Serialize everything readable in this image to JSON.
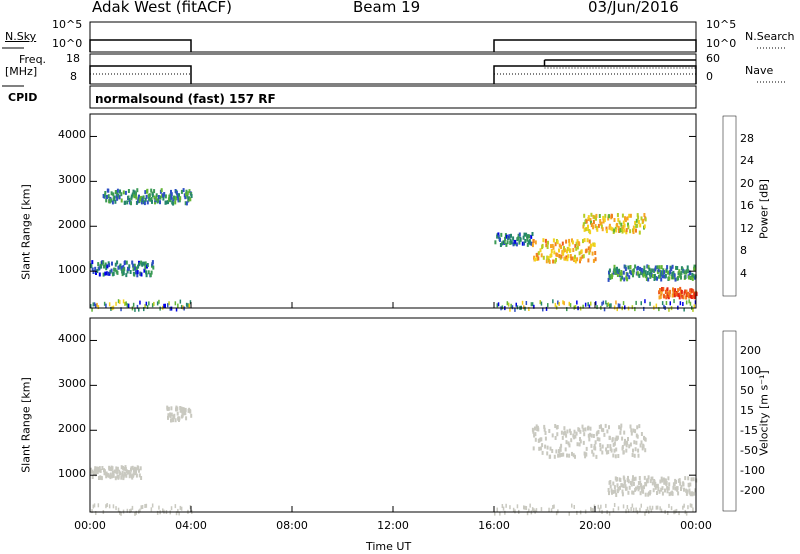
{
  "header": {
    "station": "Adak West (fitACF)",
    "beam": "Beam 19",
    "date": "03/Jun/2016"
  },
  "aux_panels": {
    "nsky_label": "N.Sky",
    "nsky_ticks": [
      "10^5",
      "10^0"
    ],
    "nsearch_label": "N.Search",
    "nsearch_ticks": [
      "10^5",
      "10^0"
    ],
    "freq_label_1": "Freq.",
    "freq_label_2": "[MHz]",
    "freq_ticks": [
      "18",
      "8"
    ],
    "nave_label": "Nave",
    "nave_ticks": [
      "60",
      "0"
    ],
    "cpid_label": "CPID",
    "cpid_text": "normalsound (fast) 157 RF"
  },
  "colors": {
    "power_scale": [
      "#0000e6",
      "#2e4fc4",
      "#24866a",
      "#3a9a55",
      "#63b534",
      "#b7cc22",
      "#f4d21e",
      "#f5a623",
      "#f07f1e",
      "#ee5a1a",
      "#e62010"
    ],
    "velocity_scale": [
      "#e61010",
      "#f05a1a",
      "#f5a023",
      "#f2d21e",
      "#c9c9c0",
      "#c9c9c0",
      "#7ac83a",
      "#2f8c5a",
      "#2a4fa8",
      "#1a1fb8"
    ]
  },
  "chart_data": [
    {
      "type": "heatmap",
      "title": "",
      "ylabel": "Slant Range [km]",
      "xlabel": "Time UT",
      "x_ticks": [
        "00:00",
        "04:00",
        "08:00",
        "12:00",
        "16:00",
        "20:00",
        "00:00"
      ],
      "y_ticks": [
        "1000",
        "2000",
        "3000",
        "4000"
      ],
      "ylim": [
        180,
        4500
      ],
      "xlim_hours": [
        0,
        24
      ],
      "colorbar_label": "Power [dB]",
      "colorbar_ticks": [
        "4",
        "8",
        "12",
        "16",
        "20",
        "24",
        "28"
      ],
      "colorbar_range": [
        0,
        30
      ],
      "echo_regions": [
        {
          "t_start": 0.5,
          "t_end": 4.0,
          "range_center": 2700,
          "range_width": 300,
          "value": 8
        },
        {
          "t_start": 0.0,
          "t_end": 2.5,
          "range_center": 1100,
          "range_width": 300,
          "value": 6
        },
        {
          "t_start": 16.0,
          "t_end": 17.5,
          "range_center": 1750,
          "range_width": 250,
          "value": 6
        },
        {
          "t_start": 17.5,
          "t_end": 20.0,
          "range_center": 1500,
          "range_width": 500,
          "value": 20
        },
        {
          "t_start": 19.5,
          "t_end": 22.0,
          "range_center": 2100,
          "range_width": 400,
          "value": 18
        },
        {
          "t_start": 20.5,
          "t_end": 24.0,
          "range_center": 1000,
          "range_width": 300,
          "value": 8
        },
        {
          "t_start": 22.5,
          "t_end": 24.0,
          "range_center": 550,
          "range_width": 200,
          "value": 26
        }
      ]
    },
    {
      "type": "heatmap",
      "title": "",
      "ylabel": "Slant Range [km]",
      "xlabel": "Time UT",
      "x_ticks": [
        "00:00",
        "04:00",
        "08:00",
        "12:00",
        "16:00",
        "20:00",
        "00:00"
      ],
      "y_ticks": [
        "1000",
        "2000",
        "3000",
        "4000"
      ],
      "ylim": [
        180,
        4500
      ],
      "xlim_hours": [
        0,
        24
      ],
      "colorbar_label": "Velocity [m s⁻¹]",
      "colorbar_ticks": [
        "200",
        "100",
        "50",
        "15",
        "-15",
        "-50",
        "-100",
        "-200"
      ],
      "colorbar_range": [
        -250,
        250
      ],
      "echo_regions": [
        {
          "t_start": 3.0,
          "t_end": 4.0,
          "range_center": 2400,
          "range_width": 300,
          "value": 0
        },
        {
          "t_start": 0.0,
          "t_end": 2.0,
          "range_center": 1100,
          "range_width": 250,
          "value": -20
        },
        {
          "t_start": 17.5,
          "t_end": 22.0,
          "range_center": 1800,
          "range_width": 700,
          "value": 0
        },
        {
          "t_start": 20.5,
          "t_end": 24.0,
          "range_center": 800,
          "range_width": 400,
          "value": 0
        }
      ]
    }
  ],
  "aux_series": {
    "nsky_on_hours": [
      [
        0.0,
        4.0
      ],
      [
        16.0,
        24.0
      ]
    ],
    "freq_on_hours": [
      [
        0.0,
        4.0
      ],
      [
        16.0,
        24.0
      ]
    ],
    "freq_step_hour": 18.0
  }
}
